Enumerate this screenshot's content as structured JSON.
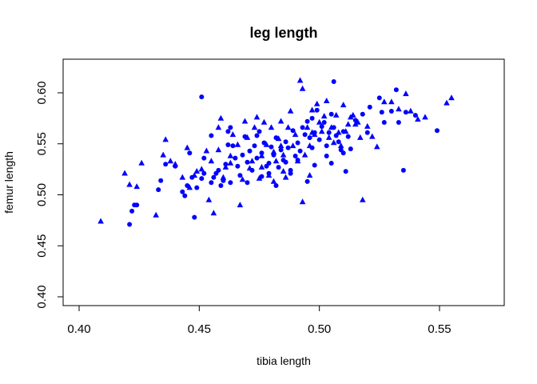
{
  "chart_data": {
    "type": "scatter",
    "title": "leg length",
    "xlabel": "tibia length",
    "ylabel": "femur length",
    "xlim": [
      0.4,
      0.57
    ],
    "ylim": [
      0.4,
      0.61
    ],
    "xticks": [
      "0.40",
      "0.45",
      "0.50",
      "0.55"
    ],
    "yticks": [
      "0.40",
      "0.45",
      "0.50",
      "0.55",
      "0.60"
    ],
    "grid": false,
    "legend": "none",
    "color": "#0000ff",
    "series": [
      {
        "marker": "circle",
        "points": [
          [
            0.451,
            0.596
          ],
          [
            0.506,
            0.611
          ],
          [
            0.549,
            0.563
          ],
          [
            0.535,
            0.524
          ],
          [
            0.421,
            0.471
          ],
          [
            0.422,
            0.484
          ],
          [
            0.423,
            0.49
          ],
          [
            0.424,
            0.49
          ],
          [
            0.433,
            0.505
          ],
          [
            0.434,
            0.514
          ],
          [
            0.443,
            0.503
          ],
          [
            0.444,
            0.499
          ],
          [
            0.445,
            0.509
          ],
          [
            0.447,
            0.517
          ],
          [
            0.448,
            0.478
          ],
          [
            0.449,
            0.507
          ],
          [
            0.451,
            0.516
          ],
          [
            0.452,
            0.521
          ],
          [
            0.455,
            0.512
          ],
          [
            0.456,
            0.517
          ],
          [
            0.457,
            0.521
          ],
          [
            0.458,
            0.524
          ],
          [
            0.459,
            0.509
          ],
          [
            0.46,
            0.514
          ],
          [
            0.461,
            0.53
          ],
          [
            0.462,
            0.562
          ],
          [
            0.463,
            0.566
          ],
          [
            0.464,
            0.548
          ],
          [
            0.465,
            0.536
          ],
          [
            0.466,
            0.528
          ],
          [
            0.467,
            0.519
          ],
          [
            0.468,
            0.539
          ],
          [
            0.469,
            0.557
          ],
          [
            0.47,
            0.532
          ],
          [
            0.471,
            0.543
          ],
          [
            0.472,
            0.524
          ],
          [
            0.473,
            0.548
          ],
          [
            0.474,
            0.536
          ],
          [
            0.475,
            0.562
          ],
          [
            0.476,
            0.541
          ],
          [
            0.477,
            0.551
          ],
          [
            0.478,
            0.528
          ],
          [
            0.479,
            0.531
          ],
          [
            0.48,
            0.547
          ],
          [
            0.481,
            0.539
          ],
          [
            0.482,
            0.556
          ],
          [
            0.483,
            0.527
          ],
          [
            0.484,
            0.544
          ],
          [
            0.485,
            0.534
          ],
          [
            0.486,
            0.552
          ],
          [
            0.487,
            0.546
          ],
          [
            0.488,
            0.524
          ],
          [
            0.489,
            0.563
          ],
          [
            0.49,
            0.538
          ],
          [
            0.491,
            0.551
          ],
          [
            0.492,
            0.543
          ],
          [
            0.493,
            0.566
          ],
          [
            0.494,
            0.559
          ],
          [
            0.495,
            0.572
          ],
          [
            0.496,
            0.556
          ],
          [
            0.497,
            0.575
          ],
          [
            0.498,
            0.561
          ],
          [
            0.499,
            0.583
          ],
          [
            0.5,
            0.554
          ],
          [
            0.501,
            0.567
          ],
          [
            0.502,
            0.571
          ],
          [
            0.503,
            0.548
          ],
          [
            0.504,
            0.561
          ],
          [
            0.505,
            0.579
          ],
          [
            0.506,
            0.566
          ],
          [
            0.507,
            0.558
          ],
          [
            0.508,
            0.552
          ],
          [
            0.509,
            0.544
          ],
          [
            0.51,
            0.562
          ],
          [
            0.512,
            0.557
          ],
          [
            0.513,
            0.545
          ],
          [
            0.515,
            0.573
          ],
          [
            0.518,
            0.579
          ],
          [
            0.52,
            0.561
          ],
          [
            0.521,
            0.586
          ],
          [
            0.525,
            0.595
          ],
          [
            0.526,
            0.581
          ],
          [
            0.527,
            0.571
          ],
          [
            0.53,
            0.582
          ],
          [
            0.532,
            0.603
          ],
          [
            0.533,
            0.571
          ],
          [
            0.536,
            0.581
          ],
          [
            0.54,
            0.578
          ],
          [
            0.47,
            0.512
          ],
          [
            0.476,
            0.518
          ],
          [
            0.482,
            0.509
          ],
          [
            0.488,
            0.521
          ],
          [
            0.495,
            0.513
          ],
          [
            0.498,
            0.529
          ],
          [
            0.505,
            0.531
          ],
          [
            0.51,
            0.541
          ],
          [
            0.486,
            0.532
          ],
          [
            0.474,
            0.558
          ],
          [
            0.462,
            0.549
          ],
          [
            0.455,
            0.558
          ],
          [
            0.452,
            0.536
          ],
          [
            0.446,
            0.541
          ],
          [
            0.44,
            0.528
          ],
          [
            0.436,
            0.53
          ],
          [
            0.479,
            0.521
          ],
          [
            0.491,
            0.534
          ],
          [
            0.497,
            0.546
          ],
          [
            0.503,
            0.538
          ],
          [
            0.511,
            0.523
          ],
          [
            0.463,
            0.512
          ]
        ]
      },
      {
        "marker": "triangle",
        "points": [
          [
            0.409,
            0.474
          ],
          [
            0.419,
            0.521
          ],
          [
            0.421,
            0.51
          ],
          [
            0.424,
            0.508
          ],
          [
            0.426,
            0.531
          ],
          [
            0.432,
            0.48
          ],
          [
            0.435,
            0.539
          ],
          [
            0.436,
            0.554
          ],
          [
            0.438,
            0.533
          ],
          [
            0.44,
            0.53
          ],
          [
            0.443,
            0.517
          ],
          [
            0.445,
            0.546
          ],
          [
            0.446,
            0.507
          ],
          [
            0.448,
            0.519
          ],
          [
            0.449,
            0.523
          ],
          [
            0.451,
            0.525
          ],
          [
            0.453,
            0.543
          ],
          [
            0.454,
            0.495
          ],
          [
            0.455,
            0.533
          ],
          [
            0.456,
            0.482
          ],
          [
            0.458,
            0.566
          ],
          [
            0.459,
            0.575
          ],
          [
            0.46,
            0.517
          ],
          [
            0.461,
            0.527
          ],
          [
            0.463,
            0.531
          ],
          [
            0.464,
            0.559
          ],
          [
            0.466,
            0.549
          ],
          [
            0.467,
            0.49
          ],
          [
            0.468,
            0.515
          ],
          [
            0.469,
            0.572
          ],
          [
            0.47,
            0.556
          ],
          [
            0.471,
            0.526
          ],
          [
            0.472,
            0.533
          ],
          [
            0.473,
            0.566
          ],
          [
            0.474,
            0.576
          ],
          [
            0.475,
            0.516
          ],
          [
            0.476,
            0.538
          ],
          [
            0.477,
            0.571
          ],
          [
            0.478,
            0.549
          ],
          [
            0.479,
            0.519
          ],
          [
            0.48,
            0.566
          ],
          [
            0.481,
            0.542
          ],
          [
            0.482,
            0.533
          ],
          [
            0.483,
            0.555
          ],
          [
            0.484,
            0.572
          ],
          [
            0.485,
            0.539
          ],
          [
            0.486,
            0.517
          ],
          [
            0.487,
            0.566
          ],
          [
            0.488,
            0.582
          ],
          [
            0.489,
            0.548
          ],
          [
            0.49,
            0.559
          ],
          [
            0.491,
            0.533
          ],
          [
            0.492,
            0.612
          ],
          [
            0.493,
            0.604
          ],
          [
            0.494,
            0.539
          ],
          [
            0.495,
            0.566
          ],
          [
            0.496,
            0.548
          ],
          [
            0.497,
            0.583
          ],
          [
            0.498,
            0.559
          ],
          [
            0.499,
            0.589
          ],
          [
            0.5,
            0.571
          ],
          [
            0.501,
            0.562
          ],
          [
            0.502,
            0.577
          ],
          [
            0.503,
            0.592
          ],
          [
            0.504,
            0.556
          ],
          [
            0.505,
            0.566
          ],
          [
            0.506,
            0.551
          ],
          [
            0.507,
            0.578
          ],
          [
            0.508,
            0.561
          ],
          [
            0.509,
            0.548
          ],
          [
            0.51,
            0.588
          ],
          [
            0.511,
            0.562
          ],
          [
            0.512,
            0.569
          ],
          [
            0.513,
            0.576
          ],
          [
            0.514,
            0.578
          ],
          [
            0.515,
            0.569
          ],
          [
            0.516,
            0.571
          ],
          [
            0.517,
            0.556
          ],
          [
            0.518,
            0.495
          ],
          [
            0.52,
            0.567
          ],
          [
            0.522,
            0.557
          ],
          [
            0.524,
            0.547
          ],
          [
            0.527,
            0.591
          ],
          [
            0.53,
            0.591
          ],
          [
            0.533,
            0.584
          ],
          [
            0.536,
            0.599
          ],
          [
            0.538,
            0.582
          ],
          [
            0.541,
            0.574
          ],
          [
            0.544,
            0.576
          ],
          [
            0.553,
            0.59
          ],
          [
            0.555,
            0.595
          ],
          [
            0.493,
            0.493
          ],
          [
            0.481,
            0.513
          ],
          [
            0.476,
            0.527
          ],
          [
            0.485,
            0.523
          ],
          [
            0.496,
            0.519
          ],
          [
            0.458,
            0.544
          ],
          [
            0.463,
            0.538
          ],
          [
            0.497,
            0.561
          ],
          [
            0.484,
            0.548
          ]
        ]
      }
    ]
  }
}
